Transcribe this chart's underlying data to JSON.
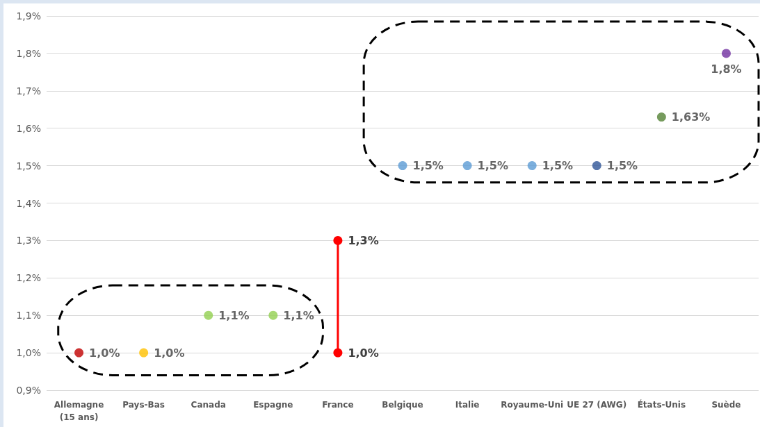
{
  "chart_data": {
    "type": "scatter",
    "categories": [
      "Allemagne\n(15 ans)",
      "Pays-Bas",
      "Canada",
      "Espagne",
      "France",
      "Belgique",
      "Italie",
      "Royaume-Uni",
      "UE 27 (AWG)",
      "États-Unis",
      "Suède"
    ],
    "series": [
      {
        "values": [
          1.0,
          1.0,
          1.1,
          1.1,
          null,
          1.5,
          1.5,
          1.5,
          1.5,
          1.63,
          1.8
        ],
        "colors": [
          "#c00000",
          "#ffc000",
          "#92d050",
          "#92d050",
          null,
          "#5b9bd5",
          "#5b9bd5",
          "#5b9bd5",
          "#2f5597",
          "#548235",
          "#7030a0"
        ],
        "value_labels": [
          "1,0%",
          "1,0%",
          "1,1%",
          "1,1%",
          null,
          "1,5%",
          "1,5%",
          "1,5%",
          "1,5%",
          "1,63%",
          "1,8%"
        ]
      },
      {
        "type": "line",
        "x": [
          "France",
          "France"
        ],
        "values": [
          1.0,
          1.3
        ],
        "color": "#ff0000",
        "value_labels": [
          "1,0%",
          "1,3%"
        ]
      }
    ],
    "ylim": [
      0.9,
      1.9
    ],
    "yticks": [
      {
        "value": 0.9,
        "label": "0,9%"
      },
      {
        "value": 1.0,
        "label": "1,0%"
      },
      {
        "value": 1.1,
        "label": "1,1%"
      },
      {
        "value": 1.2,
        "label": "1,2%"
      },
      {
        "value": 1.3,
        "label": "1,3%"
      },
      {
        "value": 1.4,
        "label": "1,4%"
      },
      {
        "value": 1.5,
        "label": "1,5%"
      },
      {
        "value": 1.6,
        "label": "1,6%"
      },
      {
        "value": 1.7,
        "label": "1,7%"
      },
      {
        "value": 1.8,
        "label": "1,8%"
      },
      {
        "value": 1.9,
        "label": "1,9%"
      }
    ],
    "grid": "y",
    "marker": "circle"
  }
}
